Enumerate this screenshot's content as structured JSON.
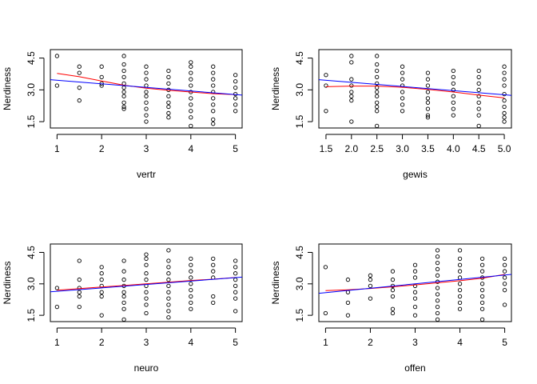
{
  "chart_data": [
    {
      "type": "scatter",
      "xlabel": "vertr",
      "ylabel": "Nerdiness",
      "xlim": [
        0.85,
        5.15
      ],
      "ylim": [
        1.2,
        4.9
      ],
      "xticks": [
        1,
        2,
        3,
        4,
        5
      ],
      "xtick_labels": [
        "1",
        "2",
        "3",
        "4",
        "5"
      ],
      "yticks": [
        1.5,
        3.0,
        4.5
      ],
      "ytick_labels": [
        "1.5",
        "3.0",
        "4.5"
      ],
      "points": [
        [
          1,
          4.6
        ],
        [
          1,
          3.2
        ],
        [
          1.5,
          4.1
        ],
        [
          1.5,
          3.8
        ],
        [
          1.5,
          3.1
        ],
        [
          1.5,
          2.5
        ],
        [
          2,
          4.1
        ],
        [
          2,
          3.6
        ],
        [
          2,
          3.3
        ],
        [
          2,
          3.2
        ],
        [
          2.5,
          4.6
        ],
        [
          2.5,
          4.2
        ],
        [
          2.5,
          3.9
        ],
        [
          2.5,
          3.6
        ],
        [
          2.5,
          3.3
        ],
        [
          2.5,
          3.1
        ],
        [
          2.5,
          2.9
        ],
        [
          2.5,
          2.7
        ],
        [
          2.5,
          2.4
        ],
        [
          2.5,
          2.2
        ],
        [
          2.5,
          2.1
        ],
        [
          3,
          4.1
        ],
        [
          3,
          3.8
        ],
        [
          3,
          3.5
        ],
        [
          3,
          3.2
        ],
        [
          3,
          2.9
        ],
        [
          3,
          2.7
        ],
        [
          3,
          2.4
        ],
        [
          3,
          2.1
        ],
        [
          3,
          1.8
        ],
        [
          3,
          1.5
        ],
        [
          3.5,
          3.9
        ],
        [
          3.5,
          3.6
        ],
        [
          3.5,
          3.3
        ],
        [
          3.5,
          3.0
        ],
        [
          3.5,
          2.7
        ],
        [
          3.5,
          2.4
        ],
        [
          3.5,
          2.2
        ],
        [
          3.5,
          1.9
        ],
        [
          3.5,
          1.7
        ],
        [
          4,
          4.3
        ],
        [
          4,
          4.1
        ],
        [
          4,
          3.8
        ],
        [
          4,
          3.5
        ],
        [
          4,
          3.2
        ],
        [
          4,
          2.9
        ],
        [
          4,
          2.6
        ],
        [
          4,
          2.3
        ],
        [
          4,
          2.0
        ],
        [
          4,
          1.7
        ],
        [
          4,
          1.3
        ],
        [
          4.5,
          4.1
        ],
        [
          4.5,
          3.8
        ],
        [
          4.5,
          3.5
        ],
        [
          4.5,
          3.2
        ],
        [
          4.5,
          2.9
        ],
        [
          4.5,
          2.6
        ],
        [
          4.5,
          2.3
        ],
        [
          4.5,
          2.0
        ],
        [
          4.5,
          1.6
        ],
        [
          4.5,
          1.4
        ],
        [
          5,
          3.7
        ],
        [
          5,
          3.4
        ],
        [
          5,
          3.1
        ],
        [
          5,
          2.8
        ],
        [
          5,
          2.6
        ],
        [
          5,
          2.3
        ],
        [
          5,
          2.0
        ]
      ],
      "fit_linear": [
        [
          0.85,
          3.48
        ],
        [
          5.15,
          2.75
        ]
      ],
      "fit_smooth": [
        [
          1,
          3.78
        ],
        [
          1.5,
          3.62
        ],
        [
          2,
          3.42
        ],
        [
          2.5,
          3.22
        ],
        [
          3,
          3.08
        ],
        [
          3.5,
          2.98
        ],
        [
          4,
          2.9
        ],
        [
          4.5,
          2.82
        ],
        [
          5,
          2.78
        ]
      ]
    },
    {
      "type": "scatter",
      "xlabel": "gewis",
      "ylabel": "Nerdiness",
      "xlim": [
        1.36,
        5.14
      ],
      "ylim": [
        1.2,
        4.9
      ],
      "xticks": [
        1.5,
        2.0,
        2.5,
        3.0,
        3.5,
        4.0,
        4.5,
        5.0
      ],
      "xtick_labels": [
        "1.5",
        "2.0",
        "2.5",
        "3.0",
        "3.5",
        "4.0",
        "4.5",
        "5.0"
      ],
      "yticks": [
        1.5,
        3.0,
        4.5
      ],
      "ytick_labels": [
        "1.5",
        "3.0",
        "4.5"
      ],
      "points": [
        [
          1.5,
          3.7
        ],
        [
          1.5,
          3.2
        ],
        [
          1.5,
          2.0
        ],
        [
          2,
          4.6
        ],
        [
          2,
          4.3
        ],
        [
          2,
          3.5
        ],
        [
          2,
          3.2
        ],
        [
          2,
          2.9
        ],
        [
          2,
          2.7
        ],
        [
          2,
          2.5
        ],
        [
          2,
          1.5
        ],
        [
          2.5,
          4.6
        ],
        [
          2.5,
          4.2
        ],
        [
          2.5,
          3.9
        ],
        [
          2.5,
          3.6
        ],
        [
          2.5,
          3.3
        ],
        [
          2.5,
          3.1
        ],
        [
          2.5,
          2.9
        ],
        [
          2.5,
          2.7
        ],
        [
          2.5,
          2.4
        ],
        [
          2.5,
          2.2
        ],
        [
          2.5,
          2.0
        ],
        [
          2.5,
          1.3
        ],
        [
          3,
          4.1
        ],
        [
          3,
          3.8
        ],
        [
          3,
          3.5
        ],
        [
          3,
          3.2
        ],
        [
          3,
          2.9
        ],
        [
          3,
          2.6
        ],
        [
          3,
          2.3
        ],
        [
          3,
          2.0
        ],
        [
          3.5,
          3.8
        ],
        [
          3.5,
          3.5
        ],
        [
          3.5,
          3.2
        ],
        [
          3.5,
          2.9
        ],
        [
          3.5,
          2.6
        ],
        [
          3.5,
          2.4
        ],
        [
          3.5,
          2.1
        ],
        [
          3.5,
          1.8
        ],
        [
          3.5,
          1.7
        ],
        [
          4,
          3.9
        ],
        [
          4,
          3.6
        ],
        [
          4,
          3.3
        ],
        [
          4,
          3.0
        ],
        [
          4,
          2.7
        ],
        [
          4,
          2.4
        ],
        [
          4,
          2.1
        ],
        [
          4,
          1.8
        ],
        [
          4.5,
          3.9
        ],
        [
          4.5,
          3.6
        ],
        [
          4.5,
          3.3
        ],
        [
          4.5,
          3.0
        ],
        [
          4.5,
          2.7
        ],
        [
          4.5,
          2.4
        ],
        [
          4.5,
          2.1
        ],
        [
          4.5,
          1.8
        ],
        [
          4.5,
          1.3
        ],
        [
          5,
          4.1
        ],
        [
          5,
          3.8
        ],
        [
          5,
          3.5
        ],
        [
          5,
          3.2
        ],
        [
          5,
          2.8
        ],
        [
          5,
          2.5
        ],
        [
          5,
          2.2
        ],
        [
          5,
          1.9
        ],
        [
          5,
          1.7
        ],
        [
          5,
          1.5
        ]
      ],
      "fit_linear": [
        [
          1.36,
          3.48
        ],
        [
          5.14,
          2.74
        ]
      ],
      "fit_smooth": [
        [
          1.5,
          3.15
        ],
        [
          2,
          3.18
        ],
        [
          2.5,
          3.18
        ],
        [
          3,
          3.12
        ],
        [
          3.5,
          3.02
        ],
        [
          4,
          2.9
        ],
        [
          4.5,
          2.75
        ],
        [
          5,
          2.62
        ]
      ]
    },
    {
      "type": "scatter",
      "xlabel": "neuro",
      "ylabel": "Nerdiness",
      "xlim": [
        0.85,
        5.15
      ],
      "ylim": [
        1.2,
        4.9
      ],
      "xticks": [
        1,
        2,
        3,
        4,
        5
      ],
      "xtick_labels": [
        "1",
        "2",
        "3",
        "4",
        "5"
      ],
      "yticks": [
        1.5,
        3.0,
        4.5
      ],
      "ytick_labels": [
        "1.5",
        "3.0",
        "4.5"
      ],
      "points": [
        [
          1,
          2.8
        ],
        [
          1,
          1.9
        ],
        [
          1.5,
          4.1
        ],
        [
          1.5,
          3.2
        ],
        [
          1.5,
          2.8
        ],
        [
          1.5,
          2.6
        ],
        [
          1.5,
          2.4
        ],
        [
          1.5,
          1.9
        ],
        [
          2,
          3.8
        ],
        [
          2,
          3.5
        ],
        [
          2,
          3.2
        ],
        [
          2,
          2.9
        ],
        [
          2,
          2.6
        ],
        [
          2,
          2.4
        ],
        [
          2,
          1.5
        ],
        [
          2.5,
          4.1
        ],
        [
          2.5,
          3.6
        ],
        [
          2.5,
          3.2
        ],
        [
          2.5,
          2.9
        ],
        [
          2.5,
          2.6
        ],
        [
          2.5,
          2.4
        ],
        [
          2.5,
          2.1
        ],
        [
          2.5,
          1.8
        ],
        [
          2.5,
          1.3
        ],
        [
          3,
          4.4
        ],
        [
          3,
          4.2
        ],
        [
          3,
          3.9
        ],
        [
          3,
          3.5
        ],
        [
          3,
          3.2
        ],
        [
          3,
          2.9
        ],
        [
          3,
          2.6
        ],
        [
          3,
          2.3
        ],
        [
          3,
          2.0
        ],
        [
          3,
          1.6
        ],
        [
          3.5,
          4.6
        ],
        [
          3.5,
          4.1
        ],
        [
          3.5,
          3.8
        ],
        [
          3.5,
          3.5
        ],
        [
          3.5,
          3.2
        ],
        [
          3.5,
          2.9
        ],
        [
          3.5,
          2.6
        ],
        [
          3.5,
          2.3
        ],
        [
          3.5,
          2.0
        ],
        [
          3.5,
          1.7
        ],
        [
          3.5,
          1.4
        ],
        [
          4,
          4.2
        ],
        [
          4,
          3.9
        ],
        [
          4,
          3.6
        ],
        [
          4,
          3.3
        ],
        [
          4,
          3.0
        ],
        [
          4,
          2.7
        ],
        [
          4,
          2.4
        ],
        [
          4,
          2.1
        ],
        [
          4,
          1.8
        ],
        [
          4.5,
          4.2
        ],
        [
          4.5,
          3.9
        ],
        [
          4.5,
          3.6
        ],
        [
          4.5,
          3.3
        ],
        [
          4.5,
          2.4
        ],
        [
          4.5,
          2.1
        ],
        [
          5,
          4.1
        ],
        [
          5,
          3.8
        ],
        [
          5,
          3.5
        ],
        [
          5,
          3.2
        ],
        [
          5,
          2.9
        ],
        [
          5,
          2.6
        ],
        [
          5,
          2.3
        ],
        [
          5,
          1.7
        ]
      ],
      "fit_linear": [
        [
          0.85,
          2.62
        ],
        [
          5.15,
          3.32
        ]
      ],
      "fit_smooth": [
        [
          1,
          2.7
        ],
        [
          1.5,
          2.77
        ],
        [
          2,
          2.85
        ],
        [
          2.5,
          2.92
        ],
        [
          3,
          3.0
        ],
        [
          3.5,
          3.08
        ],
        [
          4,
          3.16
        ],
        [
          4.5,
          3.22
        ],
        [
          5,
          3.3
        ]
      ]
    },
    {
      "type": "scatter",
      "xlabel": "offen",
      "ylabel": "Nerdiness",
      "xlim": [
        0.85,
        5.15
      ],
      "ylim": [
        1.2,
        4.9
      ],
      "xticks": [
        1,
        2,
        3,
        4,
        5
      ],
      "xtick_labels": [
        "1",
        "2",
        "3",
        "4",
        "5"
      ],
      "yticks": [
        1.5,
        3.0,
        4.5
      ],
      "ytick_labels": [
        "1.5",
        "3.0",
        "4.5"
      ],
      "points": [
        [
          1,
          3.8
        ],
        [
          1,
          1.6
        ],
        [
          1.5,
          3.2
        ],
        [
          1.5,
          2.6
        ],
        [
          1.5,
          2.1
        ],
        [
          1.5,
          1.5
        ],
        [
          2,
          3.4
        ],
        [
          2,
          3.2
        ],
        [
          2,
          2.9
        ],
        [
          2,
          2.3
        ],
        [
          2.5,
          3.6
        ],
        [
          2.5,
          3.2
        ],
        [
          2.5,
          2.9
        ],
        [
          2.5,
          2.7
        ],
        [
          2.5,
          2.4
        ],
        [
          2.5,
          1.8
        ],
        [
          2.5,
          1.6
        ],
        [
          3,
          3.9
        ],
        [
          3,
          3.6
        ],
        [
          3,
          3.3
        ],
        [
          3,
          2.9
        ],
        [
          3,
          2.6
        ],
        [
          3,
          2.3
        ],
        [
          3,
          1.9
        ],
        [
          3,
          1.5
        ],
        [
          3.5,
          4.6
        ],
        [
          3.5,
          4.3
        ],
        [
          3.5,
          4.0
        ],
        [
          3.5,
          3.7
        ],
        [
          3.5,
          3.4
        ],
        [
          3.5,
          3.1
        ],
        [
          3.5,
          2.8
        ],
        [
          3.5,
          2.5
        ],
        [
          3.5,
          2.2
        ],
        [
          3.5,
          1.9
        ],
        [
          3.5,
          1.6
        ],
        [
          3.5,
          1.3
        ],
        [
          4,
          4.6
        ],
        [
          4,
          4.2
        ],
        [
          4,
          3.9
        ],
        [
          4,
          3.6
        ],
        [
          4,
          3.3
        ],
        [
          4,
          3.0
        ],
        [
          4,
          2.7
        ],
        [
          4,
          2.4
        ],
        [
          4,
          2.1
        ],
        [
          4,
          1.8
        ],
        [
          4.5,
          4.2
        ],
        [
          4.5,
          3.9
        ],
        [
          4.5,
          3.6
        ],
        [
          4.5,
          3.3
        ],
        [
          4.5,
          3.0
        ],
        [
          4.5,
          2.7
        ],
        [
          4.5,
          2.4
        ],
        [
          4.5,
          2.1
        ],
        [
          4.5,
          1.8
        ],
        [
          4.5,
          1.3
        ],
        [
          5,
          4.2
        ],
        [
          5,
          3.9
        ],
        [
          5,
          3.6
        ],
        [
          5,
          3.3
        ],
        [
          5,
          3.0
        ],
        [
          5,
          2.7
        ],
        [
          5,
          2.0
        ]
      ],
      "fit_linear": [
        [
          0.85,
          2.55
        ],
        [
          5.15,
          3.45
        ]
      ],
      "fit_smooth": [
        [
          1,
          2.68
        ],
        [
          1.5,
          2.72
        ],
        [
          2,
          2.78
        ],
        [
          2.5,
          2.86
        ],
        [
          3,
          2.95
        ],
        [
          3.5,
          3.05
        ],
        [
          4,
          3.15
        ],
        [
          4.5,
          3.27
        ],
        [
          5,
          3.45
        ]
      ]
    }
  ],
  "colors": {
    "linear_fit": "#0000ff",
    "smooth_fit": "#ff0000",
    "points": "#000000",
    "axes": "#000000"
  }
}
